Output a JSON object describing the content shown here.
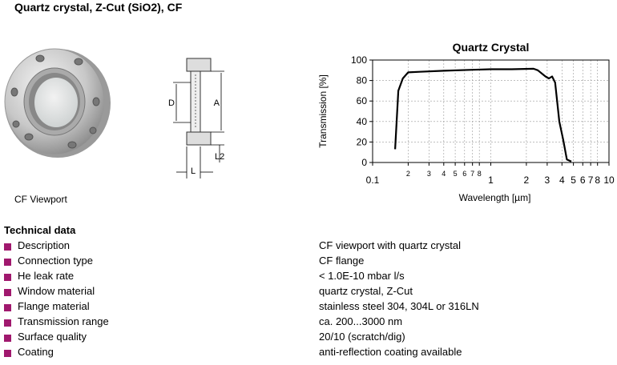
{
  "header": {
    "title": "Quartz crystal, Z-Cut (SiO2), CF"
  },
  "figure": {
    "caption": "CF Viewport",
    "labels": [
      "D",
      "A",
      "L",
      "L2"
    ]
  },
  "chart_data": {
    "type": "line",
    "title": "Quartz Crystal",
    "x_label": "Wavelength [µm]",
    "y_label": "Transmission [%]",
    "xscale": "log",
    "grid": true,
    "xlim": [
      0.1,
      10
    ],
    "ylim": [
      0,
      100
    ],
    "xticks": [
      0.1,
      {
        "value": 0.2,
        "label": "2"
      },
      {
        "value": 0.3,
        "label": "3"
      },
      {
        "value": 0.4,
        "label": "4"
      },
      {
        "value": 0.5,
        "label": "5"
      },
      {
        "value": 0.6,
        "label": "6"
      },
      {
        "value": 0.7,
        "label": "7"
      },
      {
        "value": 0.8,
        "label": "8"
      },
      1,
      2,
      3,
      4,
      5,
      6,
      7,
      8,
      10
    ],
    "yticks": [
      0,
      20,
      40,
      60,
      80,
      100
    ],
    "x": [
      0.155,
      0.165,
      0.18,
      0.2,
      0.25,
      0.4,
      0.7,
      1,
      1.5,
      2.3,
      2.5,
      2.9,
      3.1,
      3.3,
      3.5,
      3.8,
      4.1,
      4.4,
      4.8
    ],
    "series": [
      {
        "color": "#000000",
        "values": [
          13,
          70,
          82,
          88,
          88.5,
          89.5,
          90.5,
          91,
          91,
          91.5,
          90,
          84,
          82,
          84,
          78,
          40,
          22,
          3,
          1
        ]
      }
    ]
  },
  "table": {
    "title": "Technical data",
    "rows": [
      [
        "Description",
        "CF viewport with quartz crystal"
      ],
      [
        "Connection type",
        "CF flange"
      ],
      [
        "He leak rate",
        "< 1.0E-10 mbar l/s"
      ],
      [
        "Window material",
        "quartz crystal, Z-Cut"
      ],
      [
        "Flange material",
        "stainless steel 304, 304L or 316LN"
      ],
      [
        "Transmission range",
        "ca. 200...3000 nm"
      ],
      [
        "Surface quality",
        "20/10 (scratch/dig)"
      ],
      [
        "Coating",
        "anti-reflection coating available"
      ]
    ]
  }
}
